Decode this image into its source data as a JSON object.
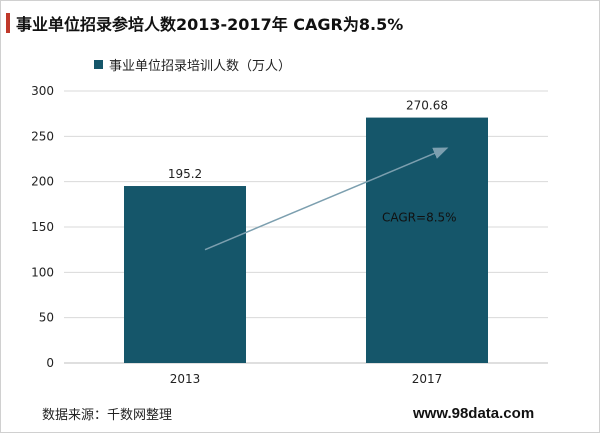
{
  "title": "事业单位招录参培人数2013-2017年 CAGR为8.5%",
  "source": "数据来源：千数网整理",
  "watermark": "www.98data.com",
  "colors": {
    "bar": "#15566a",
    "title_accent": "#c0392b",
    "arrow": "#7c9faf",
    "grid": "#d9d9d9"
  },
  "chart_data": {
    "type": "bar",
    "title": "事业单位招录参培人数2013-2017年 CAGR为8.5%",
    "categories": [
      "2013",
      "2017"
    ],
    "series": [
      {
        "name": "事业单位招录培训人数（万人）",
        "values": [
          195.2,
          270.68
        ]
      }
    ],
    "data_labels": [
      "195.2",
      "270.68"
    ],
    "ylim": [
      0,
      300
    ],
    "yticks": [
      0,
      50,
      100,
      150,
      200,
      250,
      300
    ],
    "grid": true,
    "legend_position": "top-left",
    "annotations": [
      {
        "text": "CAGR=8.5%",
        "type": "trend-arrow"
      }
    ]
  }
}
